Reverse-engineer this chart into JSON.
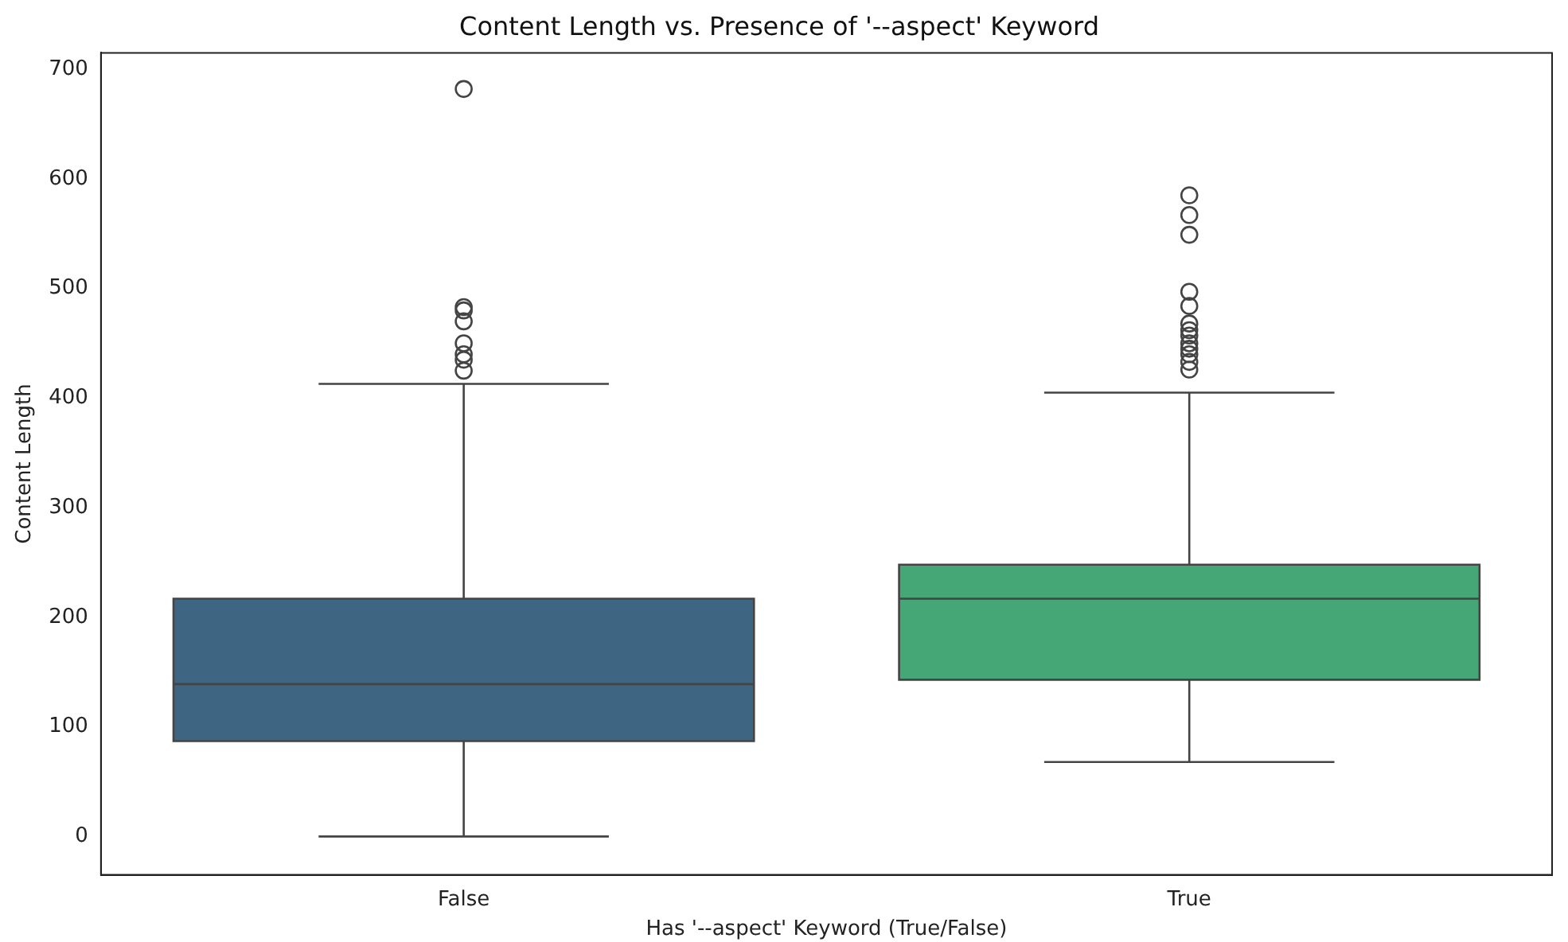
{
  "chart_data": {
    "type": "box",
    "title": "Content Length vs. Presence of '--aspect' Keyword",
    "xlabel": "Has '--aspect' Keyword (True/False)",
    "ylabel": "Content Length",
    "categories": [
      "False",
      "True"
    ],
    "colors": [
      "#3e6683",
      "#45a776"
    ],
    "boxes": [
      {
        "low": 0,
        "q1": 87,
        "median": 139,
        "q3": 217,
        "high": 413,
        "outliers": [
          682,
          483,
          480,
          470,
          450,
          440,
          435,
          425
        ]
      },
      {
        "low": 68,
        "q1": 143,
        "median": 217,
        "q3": 248,
        "high": 405,
        "outliers": [
          585,
          567,
          549,
          497,
          484,
          468,
          462,
          457,
          450,
          445,
          440,
          433,
          426
        ]
      }
    ],
    "ylim": [
      -35,
      715
    ],
    "yticks": [
      0,
      100,
      200,
      300,
      400,
      500,
      600,
      700
    ],
    "grid": false,
    "legend": false
  }
}
